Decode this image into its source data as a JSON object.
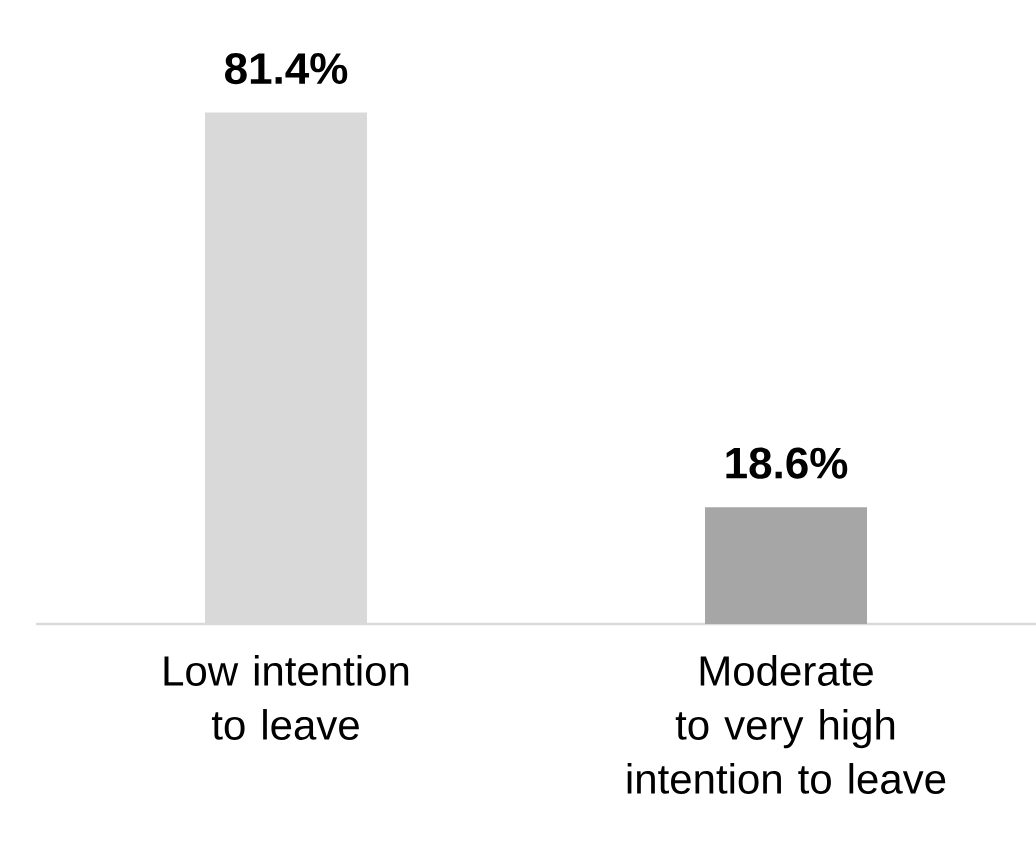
{
  "chart_data": {
    "type": "bar",
    "categories": [
      "Low intention to leave",
      "Moderate to very high intention to leave"
    ],
    "values": [
      81.4,
      18.6
    ],
    "colors": [
      "#d9d9d9",
      "#a6a6a6"
    ],
    "value_labels": [
      "81.4%",
      "18.6%"
    ],
    "tick_labels": "x"
  }
}
